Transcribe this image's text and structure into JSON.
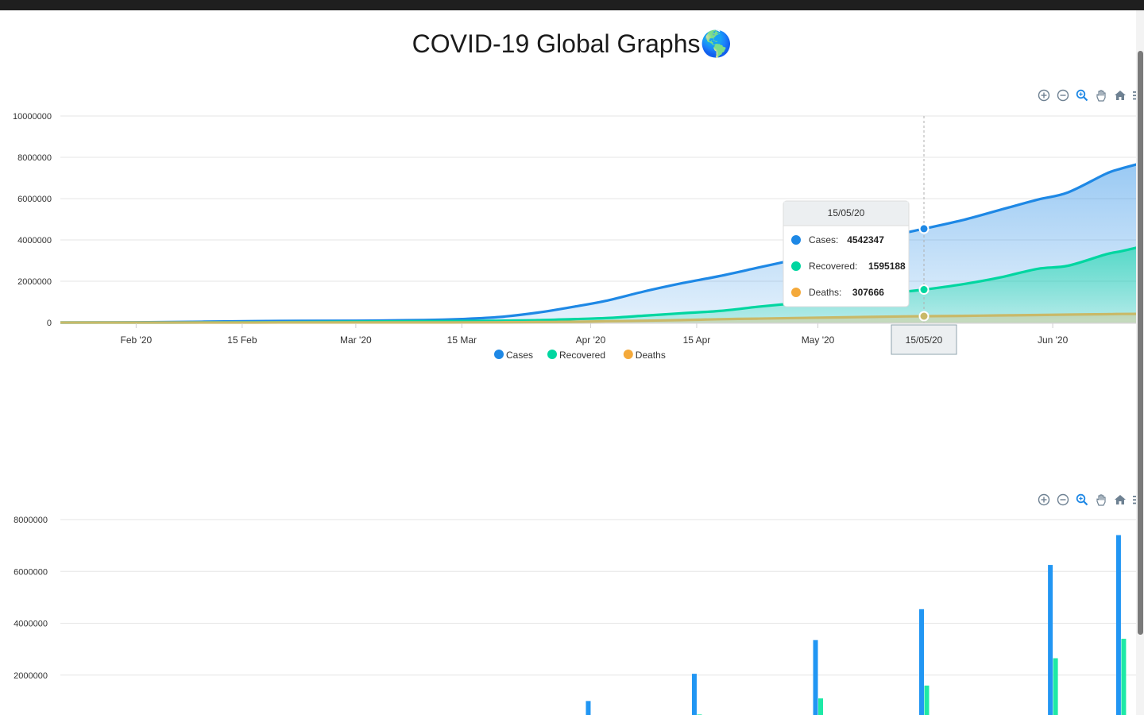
{
  "page": {
    "title": "COVID-19 Global Graphs",
    "title_emoji": "🌎"
  },
  "toolbar": {
    "icons": [
      "zoom-in-icon",
      "zoom-out-icon",
      "selection-zoom-icon",
      "pan-hand-icon",
      "home-reset-icon",
      "menu-icon"
    ]
  },
  "colors": {
    "cases": "#1e88e5",
    "recovered": "#00d6a0",
    "deaths": "#f4a93a",
    "deaths_line": "#c9b968"
  },
  "chart_data": [
    {
      "type": "area",
      "x_type": "date",
      "xlim": [
        "2020-01-22",
        "2020-06-12"
      ],
      "ylim": [
        0,
        10000000
      ],
      "y_ticks": [
        "0",
        "2000000",
        "4000000",
        "6000000",
        "8000000",
        "10000000"
      ],
      "x_ticks": [
        {
          "date": "2020-02-01",
          "label": "Feb '20"
        },
        {
          "date": "2020-02-15",
          "label": "15 Feb"
        },
        {
          "date": "2020-03-01",
          "label": "Mar '20"
        },
        {
          "date": "2020-03-15",
          "label": "15 Mar"
        },
        {
          "date": "2020-04-01",
          "label": "Apr '20"
        },
        {
          "date": "2020-04-15",
          "label": "15 Apr"
        },
        {
          "date": "2020-05-01",
          "label": "May '20"
        },
        {
          "date": "2020-06-01",
          "label": "Jun '20"
        }
      ],
      "grid": true,
      "legend_position": "bottom-center",
      "x": [
        "2020-01-22",
        "2020-02-01",
        "2020-02-10",
        "2020-02-20",
        "2020-03-01",
        "2020-03-10",
        "2020-03-15",
        "2020-03-20",
        "2020-03-25",
        "2020-03-30",
        "2020-04-03",
        "2020-04-08",
        "2020-04-13",
        "2020-04-18",
        "2020-04-23",
        "2020-04-28",
        "2020-05-03",
        "2020-05-08",
        "2020-05-12",
        "2020-05-15",
        "2020-05-20",
        "2020-05-25",
        "2020-05-30",
        "2020-06-03",
        "2020-06-08",
        "2020-06-10",
        "2020-06-12"
      ],
      "series": [
        {
          "name": "Cases",
          "values": [
            600,
            12000,
            43000,
            76000,
            88000,
            120000,
            170000,
            270000,
            480000,
            780000,
            1050000,
            1500000,
            1900000,
            2250000,
            2650000,
            3050000,
            3450000,
            3950000,
            4300000,
            4542347,
            4950000,
            5450000,
            5950000,
            6300000,
            7200000,
            7450000,
            7650000
          ]
        },
        {
          "name": "Recovered",
          "values": [
            30,
            300,
            4000,
            17000,
            42000,
            64000,
            75000,
            88000,
            115000,
            170000,
            215000,
            330000,
            450000,
            560000,
            760000,
            940000,
            1120000,
            1350000,
            1480000,
            1595188,
            1850000,
            2180000,
            2600000,
            2750000,
            3300000,
            3450000,
            3620000
          ]
        },
        {
          "name": "Deaths",
          "values": [
            17,
            260,
            1000,
            2200,
            3000,
            4200,
            5800,
            11000,
            22000,
            38000,
            60000,
            90000,
            120000,
            160000,
            190000,
            220000,
            245000,
            275000,
            295000,
            307666,
            325000,
            345000,
            365000,
            385000,
            405000,
            415000,
            420000
          ]
        }
      ],
      "tooltip": {
        "date": "15/05/20",
        "x": "2020-05-15",
        "rows": [
          {
            "name": "Cases",
            "label": "Cases:",
            "value": "4542347"
          },
          {
            "name": "Recovered",
            "label": "Recovered:",
            "value": "1595188"
          },
          {
            "name": "Deaths",
            "label": "Deaths:",
            "value": "307666"
          }
        ]
      },
      "crosshair_label": "15/05/20"
    },
    {
      "type": "bar",
      "ylim": [
        0,
        8000000
      ],
      "y_ticks": [
        "2000000",
        "4000000",
        "6000000",
        "8000000"
      ],
      "grid": true,
      "groups": [
        {
          "date": "2020-04-01",
          "cases": 1000000,
          "recovered": 200000
        },
        {
          "date": "2020-04-15",
          "cases": 2050000,
          "recovered": 480000
        },
        {
          "date": "2020-05-01",
          "cases": 3350000,
          "recovered": 1100000
        },
        {
          "date": "2020-05-15",
          "cases": 4542347,
          "recovered": 1595188
        },
        {
          "date": "2020-06-01",
          "cases": 6250000,
          "recovered": 2650000
        },
        {
          "date": "2020-06-10",
          "cases": 7400000,
          "recovered": 3400000
        },
        {
          "date": "2020-06-13",
          "cases": 7750000,
          "recovered": 3650000
        }
      ]
    }
  ]
}
